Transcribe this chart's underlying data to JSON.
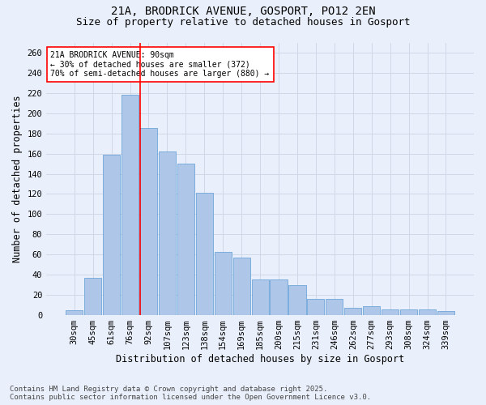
{
  "title": "21A, BRODRICK AVENUE, GOSPORT, PO12 2EN",
  "subtitle": "Size of property relative to detached houses in Gosport",
  "xlabel": "Distribution of detached houses by size in Gosport",
  "ylabel": "Number of detached properties",
  "categories": [
    "30sqm",
    "45sqm",
    "61sqm",
    "76sqm",
    "92sqm",
    "107sqm",
    "123sqm",
    "138sqm",
    "154sqm",
    "169sqm",
    "185sqm",
    "200sqm",
    "215sqm",
    "231sqm",
    "246sqm",
    "262sqm",
    "277sqm",
    "293sqm",
    "308sqm",
    "324sqm",
    "339sqm"
  ],
  "values": [
    5,
    37,
    159,
    218,
    185,
    162,
    150,
    121,
    63,
    57,
    35,
    35,
    30,
    16,
    16,
    7,
    9,
    6,
    6,
    6,
    4
  ],
  "bar_color": "#aec6e8",
  "bar_edge_color": "#5b9bd5",
  "grid_color": "#d0d8e8",
  "background_color": "#eaf0fb",
  "annotation_text": "21A BRODRICK AVENUE: 90sqm\n← 30% of detached houses are smaller (372)\n70% of semi-detached houses are larger (880) →",
  "vline_x_index": 4,
  "vline_color": "red",
  "annotation_box_color": "white",
  "annotation_box_edge": "red",
  "footnote": "Contains HM Land Registry data © Crown copyright and database right 2025.\nContains public sector information licensed under the Open Government Licence v3.0.",
  "ylim": [
    0,
    270
  ],
  "yticks": [
    0,
    20,
    40,
    60,
    80,
    100,
    120,
    140,
    160,
    180,
    200,
    220,
    240,
    260
  ],
  "title_fontsize": 10,
  "subtitle_fontsize": 9,
  "axis_label_fontsize": 8.5,
  "tick_fontsize": 7.5,
  "footnote_fontsize": 6.5
}
